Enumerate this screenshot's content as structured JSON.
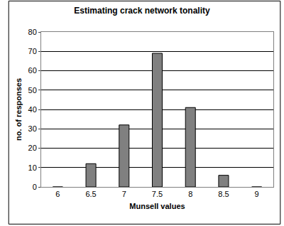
{
  "chart_data": {
    "type": "bar",
    "title": "Estimating crack network tonality",
    "x_label": "Munsell values",
    "y_label": "no. of responses",
    "categories": [
      "6",
      "6.5",
      "7",
      "7.5",
      "8",
      "8.5",
      "9"
    ],
    "values": [
      0,
      12,
      32,
      69,
      41,
      6,
      0
    ],
    "color": "#808080",
    "ylim": [
      0,
      80
    ],
    "yticks": [
      0,
      10,
      20,
      30,
      40,
      50,
      60,
      70,
      80
    ],
    "grid": true
  }
}
